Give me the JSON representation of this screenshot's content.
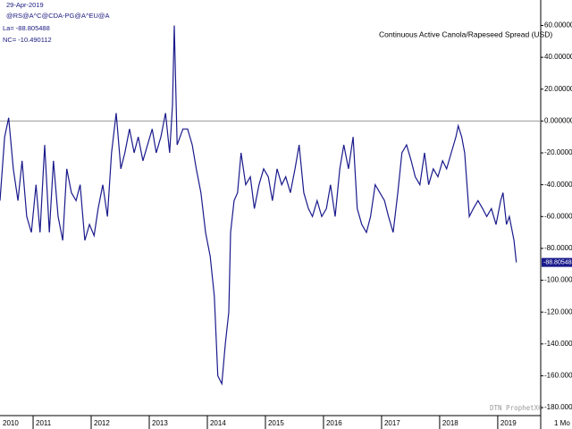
{
  "chart_data": {
    "type": "line",
    "title": "Continuous Active Canola/Rapeseed Spread (USD)",
    "header": [
      "29-Apr-2019",
      "@RS@A^C@CDA-PG@A^EU@A",
      "La= -88.805488",
      "NC= -10.490112"
    ],
    "watermark": "DTN ProphetX®",
    "period_label": "1 Mo",
    "x": [
      2010.43,
      2010.51,
      2010.58,
      2010.66,
      2010.74,
      2010.81,
      2010.89,
      2010.97,
      2011.05,
      2011.12,
      2011.2,
      2011.28,
      2011.35,
      2011.43,
      2011.51,
      2011.58,
      2011.66,
      2011.74,
      2011.81,
      2011.89,
      2011.97,
      2012.05,
      2012.12,
      2012.2,
      2012.28,
      2012.35,
      2012.43,
      2012.51,
      2012.58,
      2012.66,
      2012.74,
      2012.81,
      2012.89,
      2012.97,
      2013.05,
      2013.12,
      2013.2,
      2013.28,
      2013.35,
      2013.4,
      2013.43,
      2013.48,
      2013.58,
      2013.66,
      2013.74,
      2013.81,
      2013.89,
      2013.97,
      2014.05,
      2014.12,
      2014.18,
      2014.25,
      2014.31,
      2014.37,
      2014.4,
      2014.46,
      2014.52,
      2014.58,
      2014.66,
      2014.74,
      2014.81,
      2014.89,
      2014.97,
      2015.05,
      2015.12,
      2015.2,
      2015.28,
      2015.35,
      2015.43,
      2015.51,
      2015.58,
      2015.66,
      2015.74,
      2015.81,
      2015.89,
      2015.97,
      2016.05,
      2016.12,
      2016.2,
      2016.28,
      2016.35,
      2016.43,
      2016.51,
      2016.58,
      2016.66,
      2016.74,
      2016.81,
      2016.89,
      2016.97,
      2017.05,
      2017.12,
      2017.2,
      2017.28,
      2017.35,
      2017.43,
      2017.51,
      2017.58,
      2017.66,
      2017.74,
      2017.81,
      2017.89,
      2017.97,
      2018.05,
      2018.12,
      2018.2,
      2018.28,
      2018.32,
      2018.38,
      2018.43,
      2018.51,
      2018.58,
      2018.66,
      2018.74,
      2018.81,
      2018.89,
      2018.97,
      2019.05,
      2019.09,
      2019.15,
      2019.2,
      2019.28,
      2019.32
    ],
    "series": [
      {
        "color": "#1a1a8c",
        "values": [
          -50,
          -10,
          2,
          -30,
          -50,
          -25,
          -60,
          -70,
          -40,
          -70,
          -15,
          -70,
          -25,
          -60,
          -75,
          -30,
          -45,
          -50,
          -40,
          -75,
          -65,
          -72,
          -55,
          -40,
          -60,
          -20,
          5,
          -30,
          -20,
          -5,
          -20,
          -10,
          -25,
          -15,
          -5,
          -20,
          -10,
          5,
          -20,
          10,
          60,
          -15,
          -5,
          -5,
          -15,
          -30,
          -45,
          -70,
          -85,
          -110,
          -160,
          -165,
          -140,
          -120,
          -70,
          -50,
          -45,
          -20,
          -40,
          -35,
          -55,
          -40,
          -30,
          -35,
          -50,
          -30,
          -40,
          -35,
          -45,
          -30,
          -15,
          -45,
          -55,
          -60,
          -50,
          -60,
          -55,
          -40,
          -60,
          -30,
          -15,
          -30,
          -10,
          -55,
          -65,
          -70,
          -60,
          -40,
          -45,
          -50,
          -60,
          -70,
          -45,
          -20,
          -15,
          -25,
          -35,
          -40,
          -20,
          -40,
          -30,
          -35,
          -25,
          -30,
          -20,
          -10,
          -3,
          -10,
          -20,
          -60,
          -55,
          -50,
          -55,
          -60,
          -55,
          -65,
          -50,
          -45,
          -65,
          -60,
          -75,
          -88.805488
        ]
      }
    ],
    "reference_line": 0,
    "xlim": [
      2010.43,
      2019.74
    ],
    "xticks": [
      2010,
      2011,
      2012,
      2013,
      2014,
      2015,
      2016,
      2017,
      2018,
      2019
    ],
    "ylim": [
      -185,
      76
    ],
    "yticks": [
      {
        "value": 60,
        "label": "60.000000"
      },
      {
        "value": 40,
        "label": "40.000000"
      },
      {
        "value": 20,
        "label": "20.000000"
      },
      {
        "value": 0,
        "label": "0.000000"
      },
      {
        "value": -20,
        "label": "-20.000000"
      },
      {
        "value": -40,
        "label": "-40.000000"
      },
      {
        "value": -60,
        "label": "-60.000000"
      },
      {
        "value": -80,
        "label": "-80.000000"
      },
      {
        "value": -100,
        "label": "-100.000000"
      },
      {
        "value": -120,
        "label": "-120.000000"
      },
      {
        "value": -140,
        "label": "-140.000000"
      },
      {
        "value": -160,
        "label": "-160.000000"
      },
      {
        "value": -180,
        "label": "-180.000000"
      }
    ]
  }
}
